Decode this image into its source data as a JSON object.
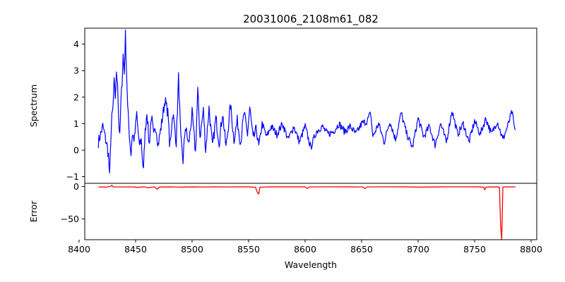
{
  "chart_data": {
    "type": "line",
    "title": "20031006_2108m61_082",
    "xlabel": "Wavelength",
    "xlim": [
      8405,
      8805
    ],
    "xticks": [
      8400,
      8450,
      8500,
      8550,
      8600,
      8650,
      8700,
      8750,
      8800
    ],
    "x_range": [
      8417,
      8786
    ],
    "grid": false,
    "panels": [
      {
        "name": "spectrum",
        "ylabel": "Spectrum",
        "ylim": [
          -1.25,
          4.6
        ],
        "yticks": [
          -1,
          0,
          1,
          2,
          3,
          4
        ],
        "color": "#0000ff",
        "anchors": [
          [
            8417,
            0.3
          ],
          [
            8419,
            0.6
          ],
          [
            8421,
            0.9
          ],
          [
            8423,
            0.5
          ],
          [
            8425,
            0.1
          ],
          [
            8426,
            -0.2
          ],
          [
            8427,
            -1.05
          ],
          [
            8428,
            0.4
          ],
          [
            8429,
            1.2
          ],
          [
            8430,
            1.6
          ],
          [
            8431,
            2.55
          ],
          [
            8432,
            2.0
          ],
          [
            8433,
            2.8
          ],
          [
            8434,
            2.7
          ],
          [
            8435,
            1.2
          ],
          [
            8436,
            0.45
          ],
          [
            8437,
            1.8
          ],
          [
            8438,
            2.6
          ],
          [
            8439,
            3.6
          ],
          [
            8440,
            2.9
          ],
          [
            8441,
            4.35
          ],
          [
            8442,
            3.0
          ],
          [
            8443,
            1.6
          ],
          [
            8444,
            0.9
          ],
          [
            8445,
            0.3
          ],
          [
            8446,
            -0.15
          ],
          [
            8447,
            0.6
          ],
          [
            8449,
            0.4
          ],
          [
            8451,
            1.4
          ],
          [
            8453,
            0.2
          ],
          [
            8455,
            0.4
          ],
          [
            8456,
            -0.3
          ],
          [
            8457,
            -0.8
          ],
          [
            8458,
            0.4
          ],
          [
            8460,
            1.5
          ],
          [
            8462,
            0.2
          ],
          [
            8464,
            1.3
          ],
          [
            8466,
            0.5
          ],
          [
            8468,
            0.9
          ],
          [
            8470,
            0.2
          ],
          [
            8473,
            1.0
          ],
          [
            8476,
            1.9
          ],
          [
            8479,
            1.3
          ],
          [
            8480,
            0.1
          ],
          [
            8483,
            1.4
          ],
          [
            8486,
            0.3
          ],
          [
            8488,
            2.75
          ],
          [
            8490,
            0.4
          ],
          [
            8492,
            -0.4
          ],
          [
            8494,
            0.9
          ],
          [
            8497,
            0.2
          ],
          [
            8500,
            1.4
          ],
          [
            8503,
            -0.1
          ],
          [
            8505,
            2.25
          ],
          [
            8507,
            0.5
          ],
          [
            8510,
            1.5
          ],
          [
            8512,
            0.0
          ],
          [
            8515,
            1.6
          ],
          [
            8518,
            0.1
          ],
          [
            8521,
            1.2
          ],
          [
            8524,
            0.3
          ],
          [
            8527,
            1.4
          ],
          [
            8530,
            0.1
          ],
          [
            8534,
            1.7
          ],
          [
            8537,
            0.4
          ],
          [
            8540,
            1.1
          ],
          [
            8543,
            0.3
          ],
          [
            8546,
            1.4
          ],
          [
            8549,
            0.6
          ],
          [
            8551,
            1.6
          ],
          [
            8554,
            0.4
          ],
          [
            8557,
            0.8
          ],
          [
            8559,
            0.1
          ],
          [
            8562,
            1.0
          ],
          [
            8566,
            0.5
          ],
          [
            8570,
            0.9
          ],
          [
            8575,
            0.6
          ],
          [
            8580,
            1.0
          ],
          [
            8585,
            0.4
          ],
          [
            8590,
            0.9
          ],
          [
            8595,
            0.3
          ],
          [
            8600,
            0.9
          ],
          [
            8605,
            0.1
          ],
          [
            8610,
            0.7
          ],
          [
            8615,
            0.9
          ],
          [
            8620,
            0.6
          ],
          [
            8625,
            0.7
          ],
          [
            8630,
            1.0
          ],
          [
            8635,
            0.7
          ],
          [
            8640,
            0.9
          ],
          [
            8645,
            0.6
          ],
          [
            8650,
            1.0
          ],
          [
            8655,
            1.1
          ],
          [
            8658,
            1.4
          ],
          [
            8660,
            0.5
          ],
          [
            8665,
            1.0
          ],
          [
            8670,
            0.3
          ],
          [
            8675,
            1.1
          ],
          [
            8680,
            0.4
          ],
          [
            8685,
            1.4
          ],
          [
            8690,
            0.6
          ],
          [
            8695,
            0.1
          ],
          [
            8700,
            1.2
          ],
          [
            8705,
            0.5
          ],
          [
            8710,
            0.9
          ],
          [
            8715,
            0.2
          ],
          [
            8720,
            1.0
          ],
          [
            8725,
            0.3
          ],
          [
            8730,
            1.5
          ],
          [
            8735,
            0.6
          ],
          [
            8740,
            1.0
          ],
          [
            8745,
            0.3
          ],
          [
            8750,
            1.1
          ],
          [
            8755,
            0.6
          ],
          [
            8760,
            1.2
          ],
          [
            8765,
            0.6
          ],
          [
            8770,
            1.1
          ],
          [
            8775,
            0.4
          ],
          [
            8780,
            1.0
          ],
          [
            8783,
            1.45
          ],
          [
            8786,
            0.65
          ]
        ]
      },
      {
        "name": "error",
        "ylabel": "Error",
        "ylim": [
          -82,
          5
        ],
        "yticks": [
          -50,
          0
        ],
        "color": "#ff0000",
        "anchors": [
          [
            8417,
            -0.6
          ],
          [
            8424,
            -0.8
          ],
          [
            8428,
            0.4
          ],
          [
            8429,
            2.0
          ],
          [
            8430,
            -0.5
          ],
          [
            8440,
            -0.6
          ],
          [
            8446,
            -0.4
          ],
          [
            8452,
            -1.2
          ],
          [
            8458,
            -0.5
          ],
          [
            8461,
            -2.0
          ],
          [
            8464,
            -1.0
          ],
          [
            8467,
            -0.6
          ],
          [
            8469,
            -4.2
          ],
          [
            8471,
            -0.8
          ],
          [
            8480,
            -0.5
          ],
          [
            8490,
            -0.9
          ],
          [
            8500,
            -0.5
          ],
          [
            8510,
            -0.7
          ],
          [
            8520,
            -0.4
          ],
          [
            8530,
            -0.6
          ],
          [
            8540,
            -0.5
          ],
          [
            8550,
            -0.5
          ],
          [
            8556,
            -1.0
          ],
          [
            8558,
            -10.0
          ],
          [
            8559,
            -11.5
          ],
          [
            8560,
            -1.0
          ],
          [
            8570,
            -0.4
          ],
          [
            8580,
            -0.5
          ],
          [
            8590,
            -0.5
          ],
          [
            8600,
            -0.5
          ],
          [
            8602,
            -3.0
          ],
          [
            8604,
            -0.6
          ],
          [
            8620,
            -0.4
          ],
          [
            8640,
            -0.5
          ],
          [
            8651,
            -0.6
          ],
          [
            8653,
            -3.0
          ],
          [
            8655,
            -0.6
          ],
          [
            8670,
            -0.4
          ],
          [
            8690,
            -0.5
          ],
          [
            8700,
            -0.9
          ],
          [
            8720,
            -0.5
          ],
          [
            8740,
            -0.4
          ],
          [
            8755,
            -0.5
          ],
          [
            8758,
            -1.0
          ],
          [
            8759,
            -5.0
          ],
          [
            8760,
            -1.0
          ],
          [
            8765,
            -0.5
          ],
          [
            8770,
            -0.5
          ],
          [
            8772,
            -1.0
          ],
          [
            8773,
            -60.0
          ],
          [
            8774,
            -82.0
          ],
          [
            8775,
            -1.0
          ],
          [
            8776,
            -0.4
          ],
          [
            8786,
            -0.6
          ]
        ]
      }
    ]
  }
}
